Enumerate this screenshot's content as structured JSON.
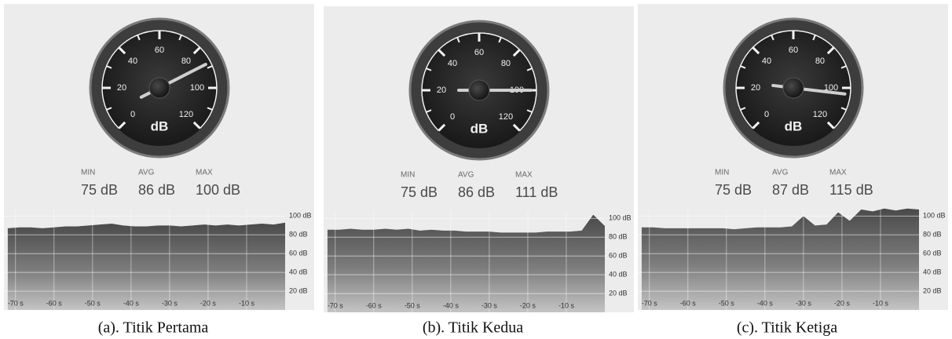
{
  "panels": [
    {
      "caption": "(a). Titik Pertama",
      "gauge": {
        "unit": "dB",
        "min": 0,
        "max": 120,
        "ticks": [
          0,
          20,
          40,
          60,
          80,
          100,
          120
        ],
        "needle": 88
      },
      "stats": [
        {
          "label": "MIN",
          "value": "75 dB"
        },
        {
          "label": "AVG",
          "value": "86 dB"
        },
        {
          "label": "MAX",
          "value": "100 dB"
        }
      ],
      "chart": {
        "xlim": [
          -73,
          0
        ],
        "ylim": [
          0,
          107
        ],
        "yticks": [
          {
            "value": 100,
            "label": "100 dB"
          },
          {
            "value": 80,
            "label": "80 dB"
          },
          {
            "value": 60,
            "label": "60 dB"
          },
          {
            "value": 40,
            "label": "40 dB"
          },
          {
            "value": 20,
            "label": "20 dB"
          }
        ],
        "xticks": [
          {
            "value": -70,
            "label": "-70 s"
          },
          {
            "value": -60,
            "label": "-60 s"
          },
          {
            "value": -50,
            "label": "-50 s"
          },
          {
            "value": -40,
            "label": "-40 s"
          },
          {
            "value": -30,
            "label": "-30 s"
          },
          {
            "value": -20,
            "label": "-20 s"
          },
          {
            "value": -10,
            "label": "-10 s"
          }
        ],
        "x": [
          -72,
          -69,
          -66,
          -63,
          -60,
          -57,
          -54,
          -51,
          -48,
          -45,
          -42,
          -39,
          -36,
          -33,
          -30,
          -27,
          -24,
          -21,
          -18,
          -15,
          -12,
          -9,
          -6,
          -3,
          0
        ],
        "values": [
          87,
          88,
          88,
          87,
          88,
          89,
          89,
          90,
          91,
          92,
          90,
          89,
          89,
          90,
          90,
          89,
          90,
          91,
          90,
          91,
          90,
          91,
          92,
          91,
          93
        ]
      }
    },
    {
      "caption": "(b). Titik Kedua",
      "gauge": {
        "unit": "dB",
        "min": 0,
        "max": 120,
        "ticks": [
          0,
          20,
          40,
          60,
          80,
          100,
          120
        ],
        "needle": 100
      },
      "stats": [
        {
          "label": "MIN",
          "value": "75 dB"
        },
        {
          "label": "AVG",
          "value": "86 dB"
        },
        {
          "label": "MAX",
          "value": "111 dB"
        }
      ],
      "chart": {
        "xlim": [
          -73,
          0
        ],
        "ylim": [
          0,
          107
        ],
        "yticks": [
          {
            "value": 100,
            "label": "100 dB"
          },
          {
            "value": 80,
            "label": "80 dB"
          },
          {
            "value": 60,
            "label": "60 dB"
          },
          {
            "value": 40,
            "label": "40 dB"
          },
          {
            "value": 20,
            "label": "20 dB"
          }
        ],
        "xticks": [
          {
            "value": -70,
            "label": "-70 s"
          },
          {
            "value": -60,
            "label": "-60 s"
          },
          {
            "value": -50,
            "label": "-50 s"
          },
          {
            "value": -40,
            "label": "-40 s"
          },
          {
            "value": -30,
            "label": "-30 s"
          },
          {
            "value": -20,
            "label": "-20 s"
          },
          {
            "value": -10,
            "label": "-10 s"
          }
        ],
        "x": [
          -72,
          -69,
          -66,
          -63,
          -60,
          -57,
          -54,
          -51,
          -48,
          -45,
          -42,
          -39,
          -36,
          -33,
          -30,
          -27,
          -24,
          -21,
          -18,
          -15,
          -12,
          -9,
          -6,
          -3,
          0
        ],
        "values": [
          88,
          88,
          89,
          88,
          88,
          89,
          88,
          89,
          87,
          88,
          87,
          87,
          86,
          86,
          86,
          85,
          85,
          85,
          85,
          86,
          86,
          86,
          87,
          104,
          92
        ]
      }
    },
    {
      "caption": "(c). Titik Ketiga",
      "gauge": {
        "unit": "dB",
        "min": 0,
        "max": 120,
        "ticks": [
          0,
          20,
          40,
          60,
          80,
          100,
          120
        ],
        "needle": 103
      },
      "stats": [
        {
          "label": "MIN",
          "value": "75 dB"
        },
        {
          "label": "AVG",
          "value": "87 dB"
        },
        {
          "label": "MAX",
          "value": "115 dB"
        }
      ],
      "chart": {
        "xlim": [
          -73,
          0
        ],
        "ylim": [
          0,
          107
        ],
        "yticks": [
          {
            "value": 100,
            "label": "100 dB"
          },
          {
            "value": 80,
            "label": "80 dB"
          },
          {
            "value": 60,
            "label": "60 dB"
          },
          {
            "value": 40,
            "label": "40 dB"
          },
          {
            "value": 20,
            "label": "20 dB"
          }
        ],
        "xticks": [
          {
            "value": -70,
            "label": "-70 s"
          },
          {
            "value": -60,
            "label": "-60 s"
          },
          {
            "value": -50,
            "label": "-50 s"
          },
          {
            "value": -40,
            "label": "-40 s"
          },
          {
            "value": -30,
            "label": "-30 s"
          },
          {
            "value": -20,
            "label": "-20 s"
          },
          {
            "value": -10,
            "label": "-10 s"
          }
        ],
        "x": [
          -72,
          -69,
          -66,
          -63,
          -60,
          -57,
          -54,
          -51,
          -48,
          -45,
          -42,
          -39,
          -36,
          -33,
          -30,
          -27,
          -24,
          -21,
          -18,
          -15,
          -12,
          -9,
          -6,
          -3,
          0
        ],
        "values": [
          88,
          88,
          87,
          87,
          87,
          87,
          87,
          87,
          86,
          87,
          88,
          88,
          88,
          89,
          100,
          90,
          91,
          104,
          95,
          107,
          105,
          108,
          106,
          108,
          107
        ]
      }
    }
  ]
}
